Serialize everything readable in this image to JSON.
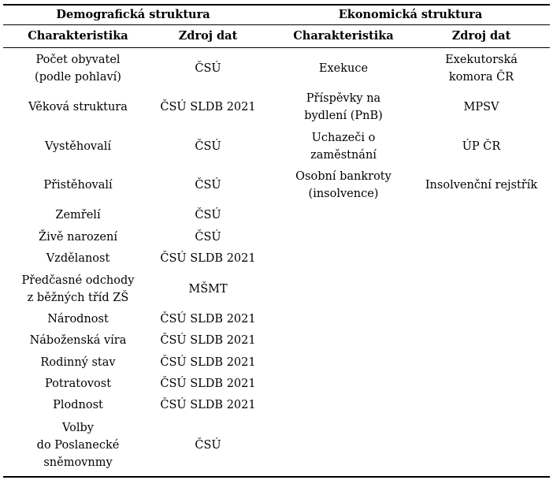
{
  "groups": {
    "demographic": "Demografická struktura",
    "economic": "Ekonomická struktura"
  },
  "headers": {
    "characteristic": "Charakteristika",
    "source": "Zdroj dat"
  },
  "demographic_rows": [
    {
      "characteristic": "Počet obyvatel\n(podle pohlaví)",
      "source": "ČSÚ"
    },
    {
      "characteristic": "Věková struktura",
      "source": "ČSÚ SLDB 2021"
    },
    {
      "characteristic": "Vystěhovalí",
      "source": "ČSÚ"
    },
    {
      "characteristic": "Přistěhovalí",
      "source": "ČSÚ"
    },
    {
      "characteristic": "Zemřelí",
      "source": "ČSÚ"
    },
    {
      "characteristic": "Živě narození",
      "source": "ČSÚ"
    },
    {
      "characteristic": "Vzdělanost",
      "source": "ČSÚ SLDB 2021"
    },
    {
      "characteristic": "Předčasné odchody\nz běžných tříd ZŠ",
      "source": "MŠMT"
    },
    {
      "characteristic": "Národnost",
      "source": "ČSÚ SLDB 2021"
    },
    {
      "characteristic": "Náboženská víra",
      "source": "ČSÚ SLDB 2021"
    },
    {
      "characteristic": "Rodinný stav",
      "source": "ČSÚ SLDB 2021"
    },
    {
      "characteristic": "Potratovost",
      "source": "ČSÚ SLDB 2021"
    },
    {
      "characteristic": "Plodnost",
      "source": "ČSÚ SLDB 2021"
    },
    {
      "characteristic": "Volby\ndo Poslanecké\nsněmovnmy",
      "source": "ČSÚ"
    }
  ],
  "economic_rows": [
    {
      "characteristic": "Exekuce",
      "source": "Exekutorská\nkomora ČR"
    },
    {
      "characteristic": "Příspěvky na\nbydlení (PnB)",
      "source": "MPSV"
    },
    {
      "characteristic": "Uchazeči o\nzaměstnání",
      "source": "ÚP ČR"
    },
    {
      "characteristic": "Osobní bankroty\n(insolvence)",
      "source": "Insolvenční rejstřík"
    }
  ]
}
